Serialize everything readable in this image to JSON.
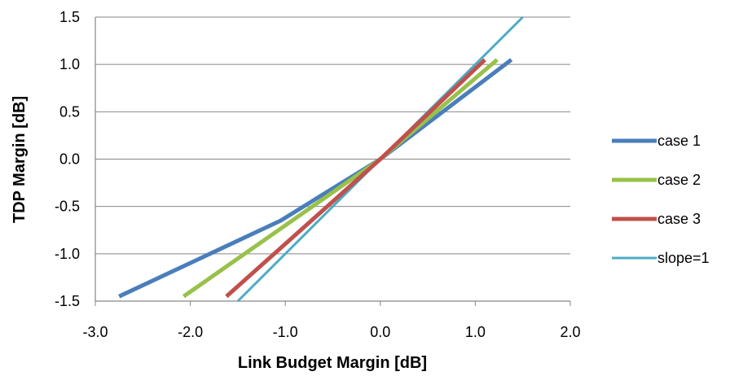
{
  "chart_data": {
    "type": "line",
    "xlabel": "Link Budget Margin [dB]",
    "ylabel": "TDP Margin [dB]",
    "xlim": [
      -3.0,
      2.0
    ],
    "ylim": [
      -1.5,
      1.5
    ],
    "x_ticks": [
      "-3.0",
      "-2.0",
      "-1.0",
      "0.0",
      "1.0",
      "2.0"
    ],
    "y_ticks": [
      "1.5",
      "1.0",
      "0.5",
      "0.0",
      "-0.5",
      "-1.0",
      "-1.5"
    ],
    "grid": "horizontal",
    "legend_position": "right",
    "series": [
      {
        "name": "case 1",
        "color": "#4a7ebb",
        "width": "thick",
        "points": [
          [
            -2.75,
            -1.45
          ],
          [
            -1.05,
            -0.65
          ],
          [
            0.0,
            0.0
          ],
          [
            1.38,
            1.05
          ]
        ]
      },
      {
        "name": "case 2",
        "color": "#98c14a",
        "width": "thick",
        "points": [
          [
            -2.07,
            -1.45
          ],
          [
            0.0,
            0.0
          ],
          [
            1.23,
            1.05
          ]
        ]
      },
      {
        "name": "case 3",
        "color": "#c0504d",
        "width": "thick",
        "points": [
          [
            -1.62,
            -1.45
          ],
          [
            0.0,
            0.0
          ],
          [
            1.1,
            1.05
          ]
        ]
      },
      {
        "name": "slope=1",
        "color": "#4bacc6",
        "width": "thin",
        "points": [
          [
            -1.5,
            -1.5
          ],
          [
            1.5,
            1.5
          ]
        ]
      }
    ]
  }
}
